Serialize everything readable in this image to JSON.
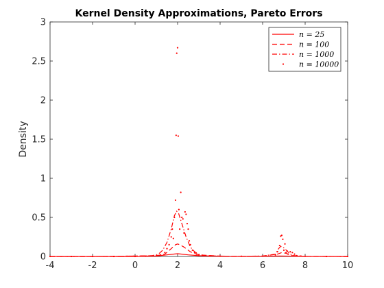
{
  "chart_data": {
    "type": "line",
    "title": "Kernel Density Approximations, Pareto Errors",
    "xlabel": "",
    "ylabel": "Density",
    "xlim": [
      -4,
      10
    ],
    "ylim": [
      0,
      3
    ],
    "xticks": [
      "-4",
      "-2",
      "0",
      "2",
      "4",
      "6",
      "8",
      "10"
    ],
    "yticks": [
      "0",
      "0.5",
      "1",
      "1.5",
      "2",
      "2.5",
      "3"
    ],
    "grid": false,
    "legend_position": "top-right",
    "color": "#ff0000",
    "series": [
      {
        "name": "n = 25",
        "style": "solid",
        "x": [
          -4,
          -2,
          0,
          1,
          1.5,
          1.8,
          2.0,
          2.2,
          2.5,
          3,
          4,
          5,
          6,
          6.8,
          7.2,
          8,
          10
        ],
        "y": [
          0.0,
          0.0,
          0.0,
          0.005,
          0.02,
          0.03,
          0.035,
          0.03,
          0.02,
          0.01,
          0.003,
          0.002,
          0.003,
          0.005,
          0.004,
          0.001,
          0.0
        ]
      },
      {
        "name": "n = 100",
        "style": "dashed",
        "x": [
          -4,
          -2,
          0,
          1,
          1.4,
          1.7,
          1.9,
          2.0,
          2.1,
          2.3,
          2.6,
          3,
          4,
          5,
          6,
          6.7,
          6.9,
          7.1,
          7.4,
          8,
          10
        ],
        "y": [
          0.0,
          0.0,
          0.005,
          0.01,
          0.03,
          0.1,
          0.15,
          0.16,
          0.15,
          0.12,
          0.06,
          0.02,
          0.004,
          0.003,
          0.004,
          0.03,
          0.05,
          0.04,
          0.01,
          0.002,
          0.0
        ]
      },
      {
        "name": "n = 1000",
        "style": "dashdot",
        "x": [
          -4,
          -2,
          0,
          0.8,
          1.1,
          1.3,
          1.5,
          1.7,
          1.85,
          1.95,
          2.05,
          2.2,
          2.4,
          2.6,
          2.8,
          3.0,
          3.3,
          4,
          5,
          6,
          6.6,
          6.75,
          6.85,
          7.0,
          7.15,
          7.3,
          7.5,
          8,
          10
        ],
        "y": [
          0.0,
          0.0,
          0.005,
          0.01,
          0.03,
          0.08,
          0.18,
          0.35,
          0.52,
          0.58,
          0.55,
          0.42,
          0.25,
          0.12,
          0.06,
          0.03,
          0.01,
          0.004,
          0.003,
          0.005,
          0.03,
          0.1,
          0.13,
          0.11,
          0.07,
          0.03,
          0.01,
          0.002,
          0.0
        ]
      },
      {
        "name": "n = 10000",
        "style": "dots",
        "x": [
          -4,
          -3,
          -2,
          -1,
          0,
          0.5,
          1.0,
          1.2,
          1.4,
          1.5,
          1.6,
          1.7,
          1.75,
          1.8,
          1.85,
          1.9,
          1.93,
          1.96,
          2.0,
          2.03,
          2.06,
          2.1,
          2.15,
          2.2,
          2.25,
          2.3,
          2.35,
          2.4,
          2.45,
          2.5,
          2.55,
          2.6,
          2.7,
          2.8,
          2.9,
          3.0,
          3.2,
          3.5,
          4,
          5,
          6,
          6.6,
          6.7,
          6.8,
          6.85,
          6.9,
          6.95,
          7.0,
          7.05,
          7.1,
          7.15,
          7.2,
          7.3,
          7.4,
          7.5,
          7.6,
          7.8,
          8,
          9,
          10
        ],
        "y": [
          0.0,
          0.0,
          0.0,
          0.0,
          0.0,
          0.003,
          0.01,
          0.02,
          0.05,
          0.1,
          0.15,
          0.25,
          0.35,
          0.23,
          0.5,
          0.72,
          1.55,
          2.6,
          2.67,
          1.54,
          0.6,
          0.35,
          0.82,
          0.5,
          0.48,
          0.3,
          0.57,
          0.54,
          0.42,
          0.35,
          0.2,
          0.15,
          0.08,
          0.05,
          0.03,
          0.02,
          0.01,
          0.005,
          0.003,
          0.002,
          0.003,
          0.02,
          0.06,
          0.14,
          0.26,
          0.27,
          0.22,
          0.08,
          0.16,
          0.05,
          0.07,
          0.03,
          0.06,
          0.05,
          0.03,
          0.01,
          0.005,
          0.002,
          0.0,
          0.0
        ]
      }
    ]
  }
}
